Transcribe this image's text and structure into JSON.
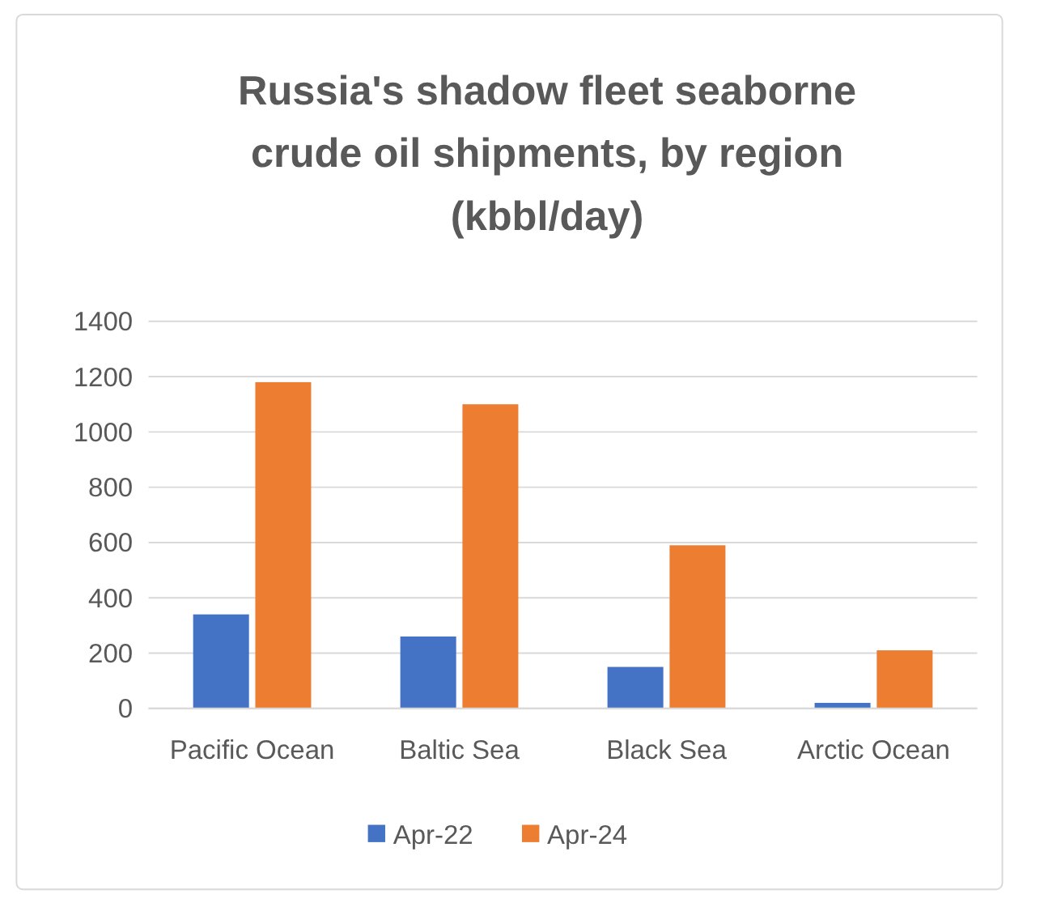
{
  "chart_data": {
    "type": "bar",
    "title": "Russia's shadow fleet seaborne crude oil shipments, by region (kbbl/day)",
    "categories": [
      "Pacific Ocean",
      "Baltic Sea",
      "Black Sea",
      "Arctic Ocean"
    ],
    "series": [
      {
        "name": "Apr-22",
        "color": "#4472c4",
        "values": [
          340,
          260,
          150,
          20
        ]
      },
      {
        "name": "Apr-24",
        "color": "#ed7d31",
        "values": [
          1180,
          1100,
          590,
          210
        ]
      }
    ],
    "ylim": [
      0,
      1400
    ],
    "yticks": [
      0,
      200,
      400,
      600,
      800,
      1000,
      1200,
      1400
    ],
    "grid": "y",
    "legend": "bottom"
  }
}
